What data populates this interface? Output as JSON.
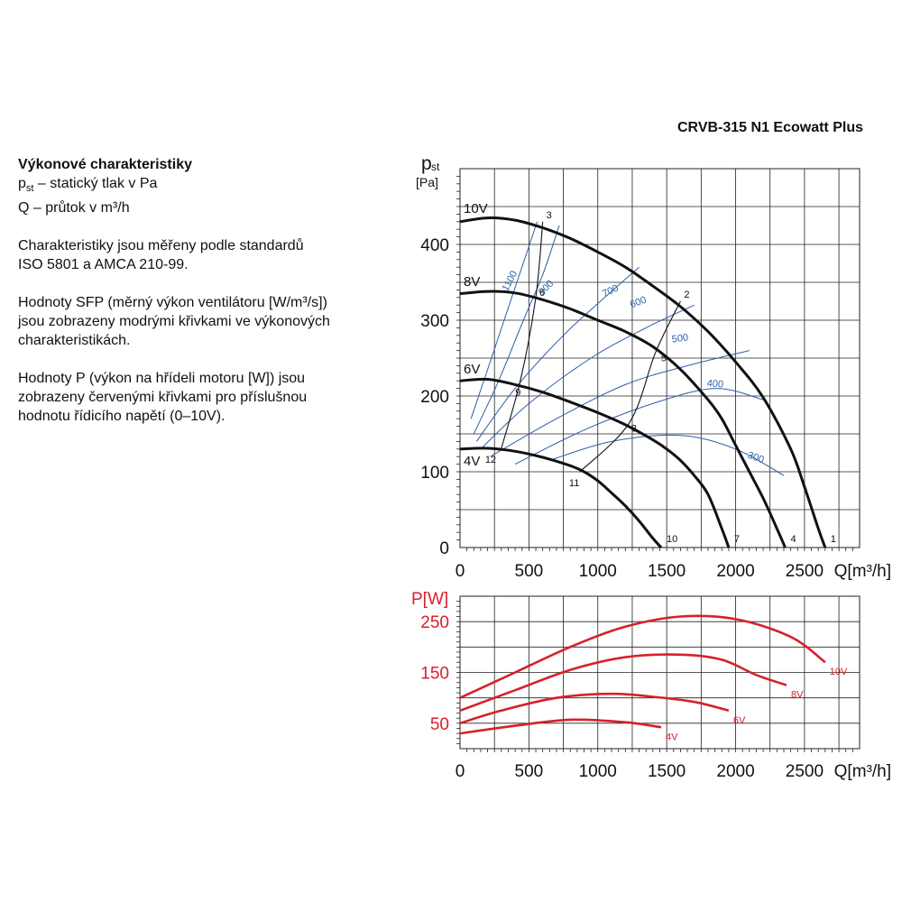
{
  "model_title": "CRVB-315 N1 Ecowatt Plus",
  "description": {
    "heading": "Výkonové charakteristiky",
    "line_pst_main": "p",
    "line_pst_sub": "st",
    "line_pst_rest": " – statický tlak v Pa",
    "line_q": "Q – průtok v m³/h",
    "para1": [
      "Charakteristiky jsou měřeny podle standardů",
      "ISO 5801 a AMCA 210-99."
    ],
    "para2": [
      "Hodnoty SFP (měrný výkon ventilátoru [W/m³/s])",
      "jsou zobrazeny modrými křivkami ve výkonových",
      "charakteristikách."
    ],
    "para3": [
      "Hodnoty P (výkon na hřídeli motoru [W]) jsou",
      "zobrazeny červenými křivkami pro příslušnou",
      "hodnotu řídicího napětí (0–10V)."
    ]
  },
  "colors": {
    "black": "#111111",
    "sfp_blue": "#2a5fa8",
    "power_red": "#d8202a",
    "grid": "#222222"
  },
  "chart_data": [
    {
      "type": "line",
      "ylabel_main": "p",
      "ylabel_sub": "st",
      "ylabel_unit": "[Pa]",
      "xlabel": "Q[m³/h]",
      "xlim": [
        0,
        2900
      ],
      "ylim": [
        0,
        500
      ],
      "xticks": [
        0,
        500,
        1000,
        1500,
        2000,
        2500
      ],
      "yticks": [
        0,
        100,
        200,
        300,
        400
      ],
      "grid": true,
      "series": [
        {
          "name": "10V",
          "x": [
            0,
            200,
            400,
            600,
            800,
            1000,
            1200,
            1400,
            1600,
            1800,
            2000,
            2200,
            2400,
            2500,
            2600,
            2650
          ],
          "y": [
            430,
            435,
            432,
            422,
            408,
            390,
            370,
            345,
            318,
            285,
            245,
            198,
            130,
            80,
            25,
            0
          ]
        },
        {
          "name": "8V",
          "x": [
            0,
            200,
            400,
            600,
            800,
            1000,
            1200,
            1400,
            1600,
            1800,
            1900,
            2000,
            2100,
            2200,
            2300,
            2360
          ],
          "y": [
            335,
            338,
            336,
            327,
            315,
            300,
            285,
            265,
            235,
            195,
            170,
            135,
            100,
            65,
            25,
            0
          ]
        },
        {
          "name": "6V",
          "x": [
            0,
            200,
            400,
            600,
            800,
            1000,
            1200,
            1400,
            1500,
            1600,
            1700,
            1800,
            1900,
            1950
          ],
          "y": [
            220,
            222,
            215,
            205,
            192,
            178,
            162,
            142,
            130,
            115,
            95,
            70,
            25,
            0
          ]
        },
        {
          "name": "4V",
          "x": [
            0,
            200,
            400,
            600,
            800,
            900,
            1000,
            1100,
            1200,
            1300,
            1400,
            1460
          ],
          "y": [
            130,
            131,
            127,
            119,
            108,
            100,
            88,
            72,
            55,
            35,
            12,
            0
          ]
        }
      ],
      "sfp_curves": [
        {
          "label": "1100",
          "x": [
            80,
            200,
            320,
            440,
            560
          ],
          "y": [
            170,
            235,
            300,
            365,
            430
          ]
        },
        {
          "label": "900",
          "x": [
            100,
            280,
            460,
            600,
            720
          ],
          "y": [
            150,
            220,
            300,
            360,
            425
          ]
        },
        {
          "label": "700",
          "x": [
            120,
            400,
            750,
            1050,
            1300
          ],
          "y": [
            140,
            210,
            280,
            330,
            370
          ]
        },
        {
          "label": "600",
          "x": [
            150,
            500,
            950,
            1350,
            1700
          ],
          "y": [
            130,
            190,
            250,
            290,
            320
          ]
        },
        {
          "label": "500",
          "x": [
            220,
            700,
            1200,
            1650,
            2100
          ],
          "y": [
            120,
            170,
            215,
            240,
            260
          ]
        },
        {
          "label": "400",
          "x": [
            400,
            900,
            1400,
            1850,
            2200
          ],
          "y": [
            110,
            155,
            190,
            210,
            195
          ]
        },
        {
          "label": "300",
          "x": [
            650,
            1100,
            1600,
            2000,
            2350
          ],
          "y": [
            115,
            140,
            148,
            130,
            95
          ]
        }
      ],
      "operating_points": [
        {
          "label": "1",
          "x": 2650,
          "y": 0
        },
        {
          "label": "2",
          "x": 1600,
          "y": 325
        },
        {
          "label": "3",
          "x": 600,
          "y": 430
        },
        {
          "label": "4",
          "x": 2360,
          "y": 0
        },
        {
          "label": "5",
          "x": 1420,
          "y": 258
        },
        {
          "label": "6",
          "x": 550,
          "y": 330
        },
        {
          "label": "7",
          "x": 1950,
          "y": 0
        },
        {
          "label": "8",
          "x": 1230,
          "y": 165
        },
        {
          "label": "9",
          "x": 440,
          "y": 222
        },
        {
          "label": "10",
          "x": 1460,
          "y": 0
        },
        {
          "label": "11",
          "x": 870,
          "y": 100
        },
        {
          "label": "12",
          "x": 300,
          "y": 131
        }
      ],
      "system_curves": [
        {
          "points": [
            "3",
            "6",
            "9",
            "12"
          ]
        },
        {
          "points": [
            "2",
            "5",
            "8",
            "11"
          ]
        }
      ]
    },
    {
      "type": "line",
      "ylabel": "P[W]",
      "xlabel": "Q[m³/h]",
      "xlim": [
        0,
        2900
      ],
      "ylim": [
        0,
        300
      ],
      "xticks": [
        0,
        500,
        1000,
        1500,
        2000,
        2500
      ],
      "yticks": [
        50,
        150,
        250
      ],
      "grid": true,
      "series": [
        {
          "name": "10V",
          "x": [
            0,
            400,
            800,
            1200,
            1600,
            2000,
            2400,
            2650
          ],
          "y": [
            100,
            150,
            200,
            240,
            260,
            255,
            220,
            170
          ]
        },
        {
          "name": "8V",
          "x": [
            0,
            400,
            800,
            1200,
            1600,
            1900,
            2150,
            2370
          ],
          "y": [
            75,
            115,
            155,
            180,
            185,
            175,
            145,
            125
          ]
        },
        {
          "name": "6V",
          "x": [
            0,
            300,
            700,
            1100,
            1400,
            1700,
            1950
          ],
          "y": [
            50,
            75,
            100,
            108,
            102,
            92,
            75
          ]
        },
        {
          "name": "4V",
          "x": [
            0,
            400,
            800,
            1200,
            1460
          ],
          "y": [
            30,
            45,
            57,
            52,
            42
          ]
        }
      ]
    }
  ]
}
